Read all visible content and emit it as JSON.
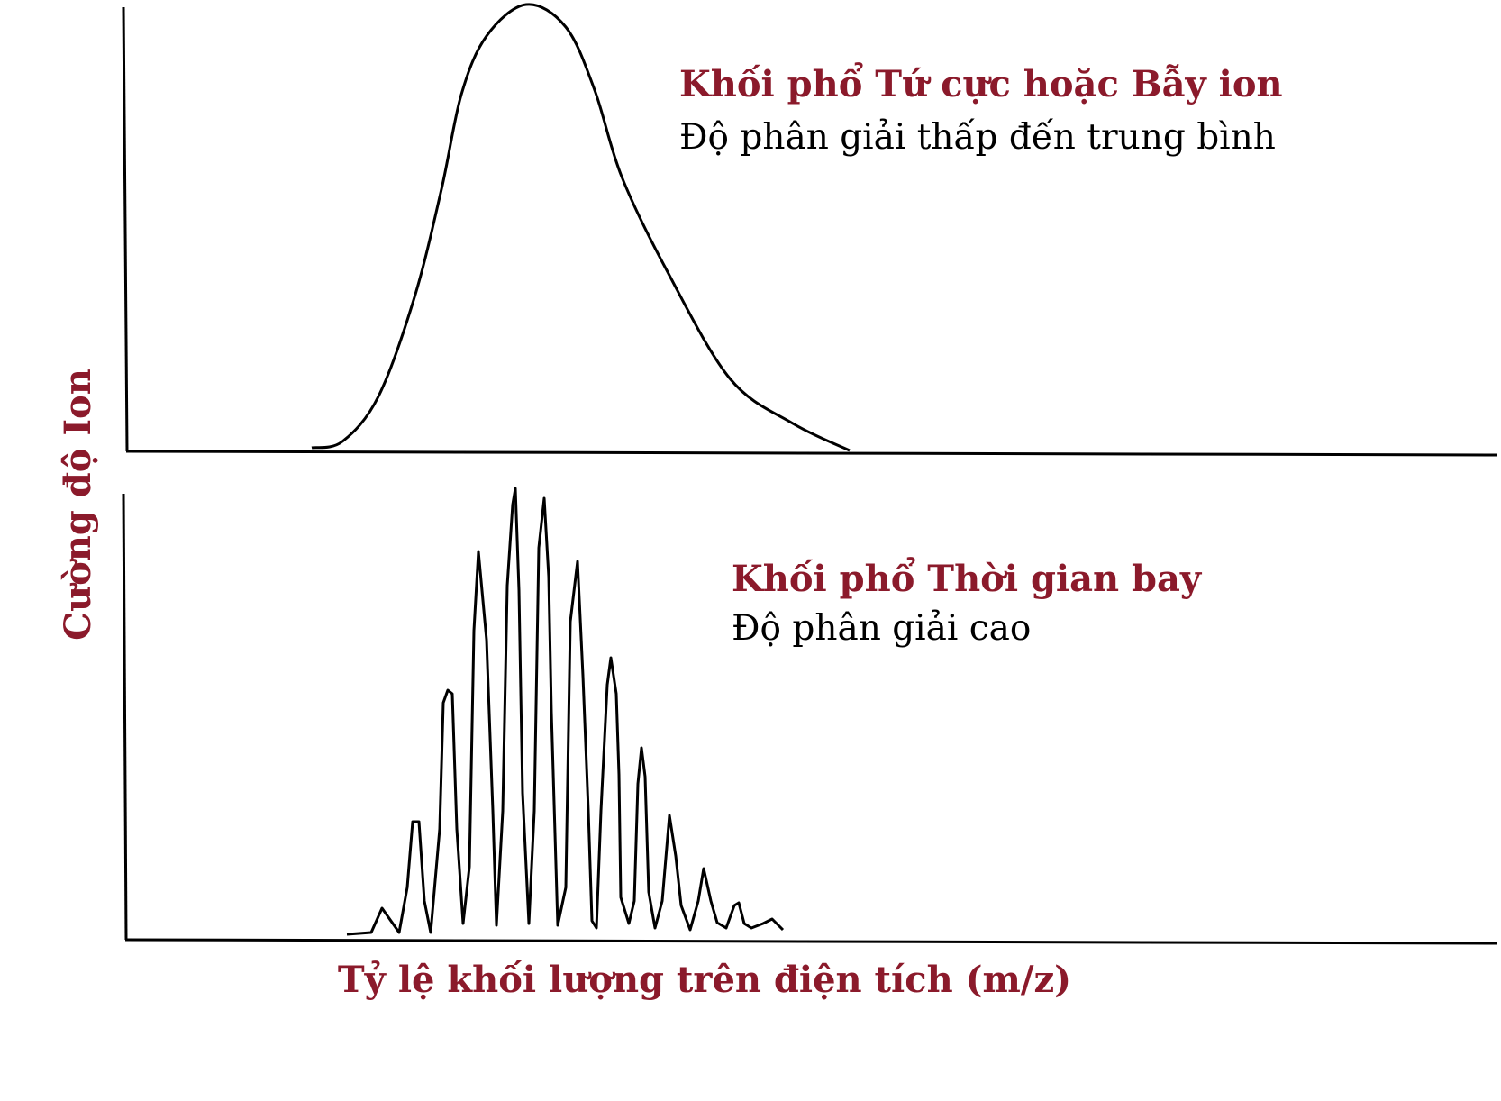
{
  "colors": {
    "accent": "#8b1a2b",
    "ink": "#000000",
    "background": "#ffffff"
  },
  "axes": {
    "y_label": "Cường độ Ion",
    "x_label": "Tỷ lệ khối lượng trên điện tích (m/z)"
  },
  "top_panel": {
    "title": "Khối phổ Tứ cực hoặc Bẫy ion",
    "subtitle": "Độ phân giải thấp đến trung bình",
    "curve": "single-broad-peak"
  },
  "bottom_panel": {
    "title": "Khối phổ Thời gian bay",
    "subtitle": "Độ phân giải cao",
    "curve": "many-resolved-peaks"
  }
}
